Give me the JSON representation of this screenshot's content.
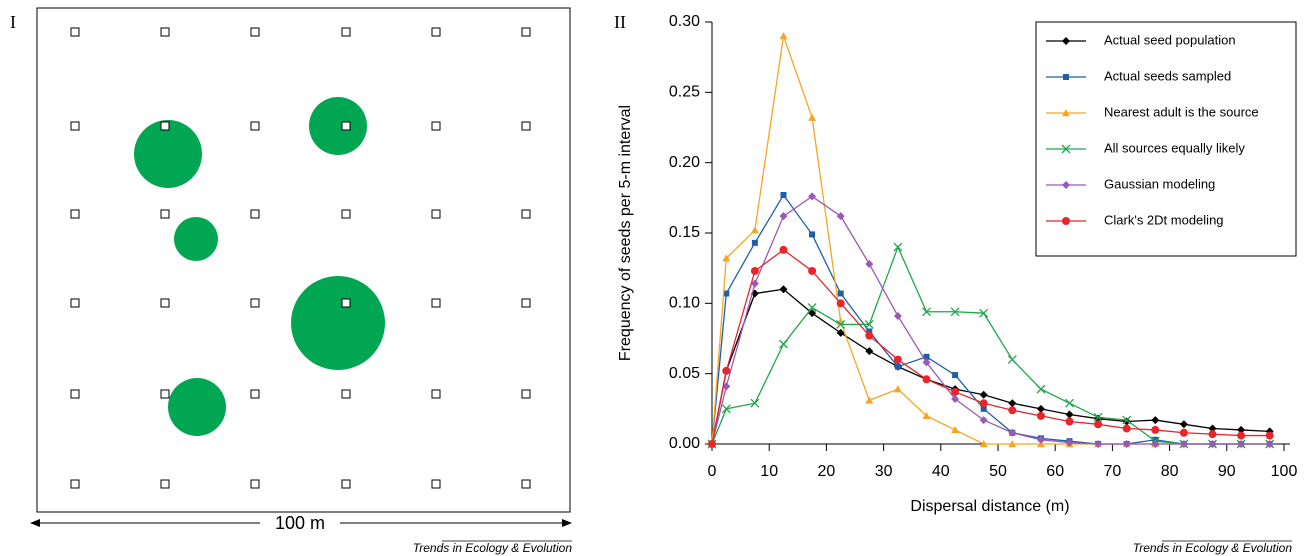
{
  "panel_1": {
    "label": "I",
    "scale_label": "100 m",
    "credit": "Trends in Ecology & Evolution"
  },
  "panel_2": {
    "label": "II",
    "credit": "Trends in Ecology & Evolution"
  },
  "chart_data": {
    "type": "line",
    "xlabel": "Dispersal distance (m)",
    "ylabel": "Frequency of seeds per 5-m interval",
    "x": [
      0,
      2.5,
      7.5,
      12.5,
      17.5,
      22.5,
      27.5,
      32.5,
      37.5,
      42.5,
      47.5,
      52.5,
      57.5,
      62.5,
      67.5,
      72.5,
      77.5,
      82.5,
      87.5,
      92.5,
      97.5
    ],
    "xlim": [
      0,
      100
    ],
    "xticks": [
      0,
      10,
      20,
      30,
      40,
      50,
      60,
      70,
      80,
      90,
      100
    ],
    "ylim": [
      0,
      0.3
    ],
    "yticks": [
      {
        "value": 0,
        "label": "0.00"
      },
      {
        "value": 0.05,
        "label": "0.05"
      },
      {
        "value": 0.1,
        "label": "0.10"
      },
      {
        "value": 0.15,
        "label": "0.15"
      },
      {
        "value": 0.2,
        "label": "0.20"
      },
      {
        "value": 0.25,
        "label": "0.25"
      },
      {
        "value": 0.3,
        "label": "0.30"
      }
    ],
    "legend": "upper right",
    "series": [
      {
        "name": "Actual seed population",
        "color": "#000000",
        "marker": "diamond",
        "values": [
          0,
          0.052,
          0.107,
          0.11,
          0.093,
          0.079,
          0.066,
          0.055,
          0.046,
          0.039,
          0.035,
          0.029,
          0.025,
          0.021,
          0.018,
          0.016,
          0.017,
          0.014,
          0.011,
          0.01,
          0.009
        ]
      },
      {
        "name": "Actual seeds sampled",
        "color": "#1f5fa8",
        "marker": "square",
        "values": [
          0,
          0.107,
          0.143,
          0.177,
          0.149,
          0.107,
          0.08,
          0.055,
          0.062,
          0.049,
          0.025,
          0.008,
          0.004,
          0.002,
          0,
          0,
          0.003,
          0,
          0,
          0,
          0
        ]
      },
      {
        "name": "Nearest adult is the source",
        "color": "#f5a623",
        "marker": "triangle",
        "values": [
          0,
          0.132,
          0.152,
          0.29,
          0.232,
          0.087,
          0.031,
          0.039,
          0.02,
          0.01,
          0,
          0,
          0,
          0,
          0,
          0,
          0,
          0,
          0,
          0,
          0
        ]
      },
      {
        "name": "All sources equally likely",
        "color": "#1fa64a",
        "marker": "x",
        "values": [
          0,
          0.025,
          0.029,
          0.071,
          0.097,
          0.085,
          0.085,
          0.14,
          0.094,
          0.094,
          0.093,
          0.06,
          0.039,
          0.029,
          0.019,
          0.017,
          0.002,
          0,
          0,
          0,
          0
        ]
      },
      {
        "name": "Gaussian modeling",
        "color": "#9b59b6",
        "marker": "diamond",
        "values": [
          0,
          0.041,
          0.114,
          0.162,
          0.176,
          0.162,
          0.128,
          0.091,
          0.058,
          0.032,
          0.017,
          0.008,
          0.003,
          0.001,
          0,
          0,
          0,
          0,
          0,
          0,
          0
        ]
      },
      {
        "name": "Clark's 2Dt modeling",
        "color": "#e8252a",
        "marker": "circle",
        "values": [
          0,
          0.052,
          0.123,
          0.138,
          0.123,
          0.1,
          0.077,
          0.06,
          0.046,
          0.037,
          0.029,
          0.024,
          0.02,
          0.016,
          0.014,
          0.011,
          0.01,
          0.008,
          0.007,
          0.006,
          0.006
        ]
      }
    ]
  }
}
